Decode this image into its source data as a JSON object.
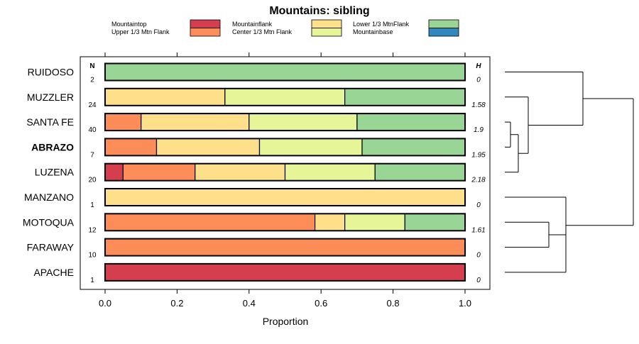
{
  "chart_data": {
    "type": "bar",
    "orientation": "horizontal",
    "stacked": true,
    "title": "Mountains: sibling",
    "xlabel": "Proportion",
    "xlim": [
      0,
      1
    ],
    "xticks": [
      "0.0",
      "0.2",
      "0.4",
      "0.6",
      "0.8",
      "1.0"
    ],
    "n_header": "N",
    "h_header": "H",
    "legend": [
      {
        "name": "Mountaintop",
        "color": "#d53e4f"
      },
      {
        "name": "Upper 1/3 Mtn Flank",
        "color": "#fc8d59"
      },
      {
        "name": "Mountainflank",
        "color": "#fee08b"
      },
      {
        "name": "Center 1/3 Mtn Flank",
        "color": "#e6f598"
      },
      {
        "name": "Lower 1/3 MtnFlank",
        "color": "#99d594"
      },
      {
        "name": "Mountainbase",
        "color": "#3288bd"
      }
    ],
    "rows": [
      {
        "label": "RUIDOSO",
        "bold": false,
        "n": "2",
        "h": "0",
        "values": [
          0,
          0,
          0,
          0,
          1.0,
          0
        ]
      },
      {
        "label": "MUZZLER",
        "bold": false,
        "n": "24",
        "h": "1.58",
        "values": [
          0,
          0,
          0.333,
          0.333,
          0.334,
          0
        ]
      },
      {
        "label": "SANTA FE",
        "bold": false,
        "n": "40",
        "h": "1.9",
        "values": [
          0,
          0.1,
          0.3,
          0.3,
          0.3,
          0
        ]
      },
      {
        "label": "ABRAZO",
        "bold": true,
        "n": "7",
        "h": "1.95",
        "values": [
          0,
          0.143,
          0.286,
          0.285,
          0.286,
          0
        ]
      },
      {
        "label": "LUZENA",
        "bold": false,
        "n": "20",
        "h": "2.18",
        "values": [
          0.05,
          0.2,
          0.25,
          0.25,
          0.25,
          0
        ]
      },
      {
        "label": "MANZANO",
        "bold": false,
        "n": "1",
        "h": "0",
        "values": [
          0,
          0,
          1.0,
          0,
          0,
          0
        ]
      },
      {
        "label": "MOTOQUA",
        "bold": false,
        "n": "12",
        "h": "1.61",
        "values": [
          0,
          0.583,
          0.083,
          0.167,
          0.167,
          0
        ]
      },
      {
        "label": "FARAWAY",
        "bold": false,
        "n": "10",
        "h": "0",
        "values": [
          0,
          1.0,
          0,
          0,
          0,
          0
        ]
      },
      {
        "label": "APACHE",
        "bold": false,
        "n": "1",
        "h": "0",
        "values": [
          1.0,
          0,
          0,
          0,
          0,
          0
        ]
      }
    ]
  }
}
